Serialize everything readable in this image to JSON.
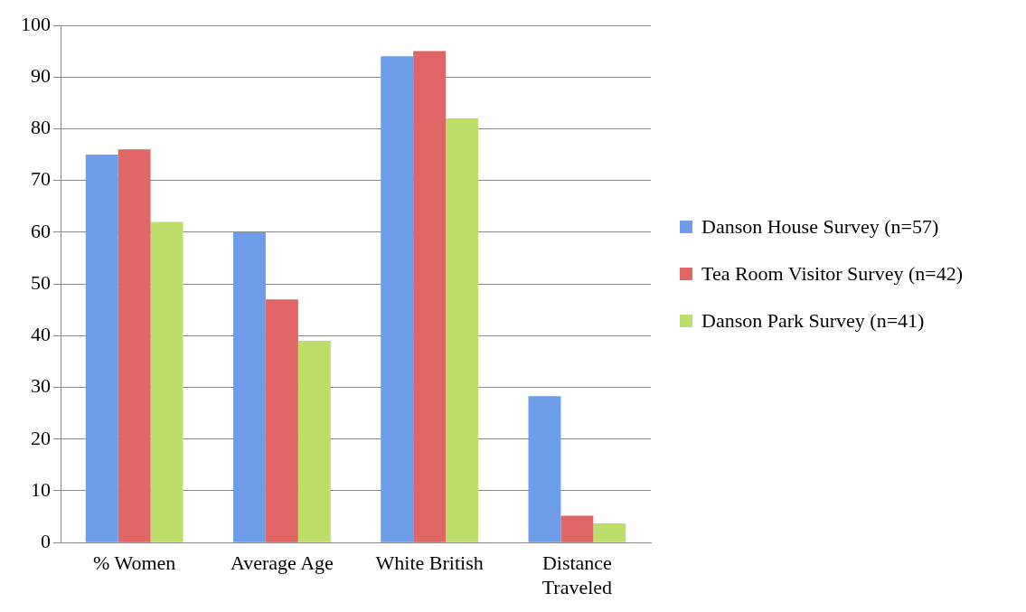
{
  "chart_data": {
    "type": "bar",
    "categories": [
      "% Women",
      "Average Age",
      "White British",
      "Distance Traveled"
    ],
    "series": [
      {
        "name": "Danson House Survey (n=57)",
        "color": "#6d9de8",
        "values": [
          75,
          60,
          94,
          28.3
        ]
      },
      {
        "name": "Tea Room Visitor Survey (n=42)",
        "color": "#e06565",
        "values": [
          76,
          47,
          95,
          5.2
        ]
      },
      {
        "name": "Danson Park Survey (n=41)",
        "color": "#bede6a",
        "values": [
          62,
          39,
          82,
          3.7
        ]
      }
    ],
    "ylim": [
      0,
      100
    ],
    "yticks": [
      0,
      10,
      20,
      30,
      40,
      50,
      60,
      70,
      80,
      90,
      100
    ],
    "grid": "y",
    "legend": "right"
  }
}
